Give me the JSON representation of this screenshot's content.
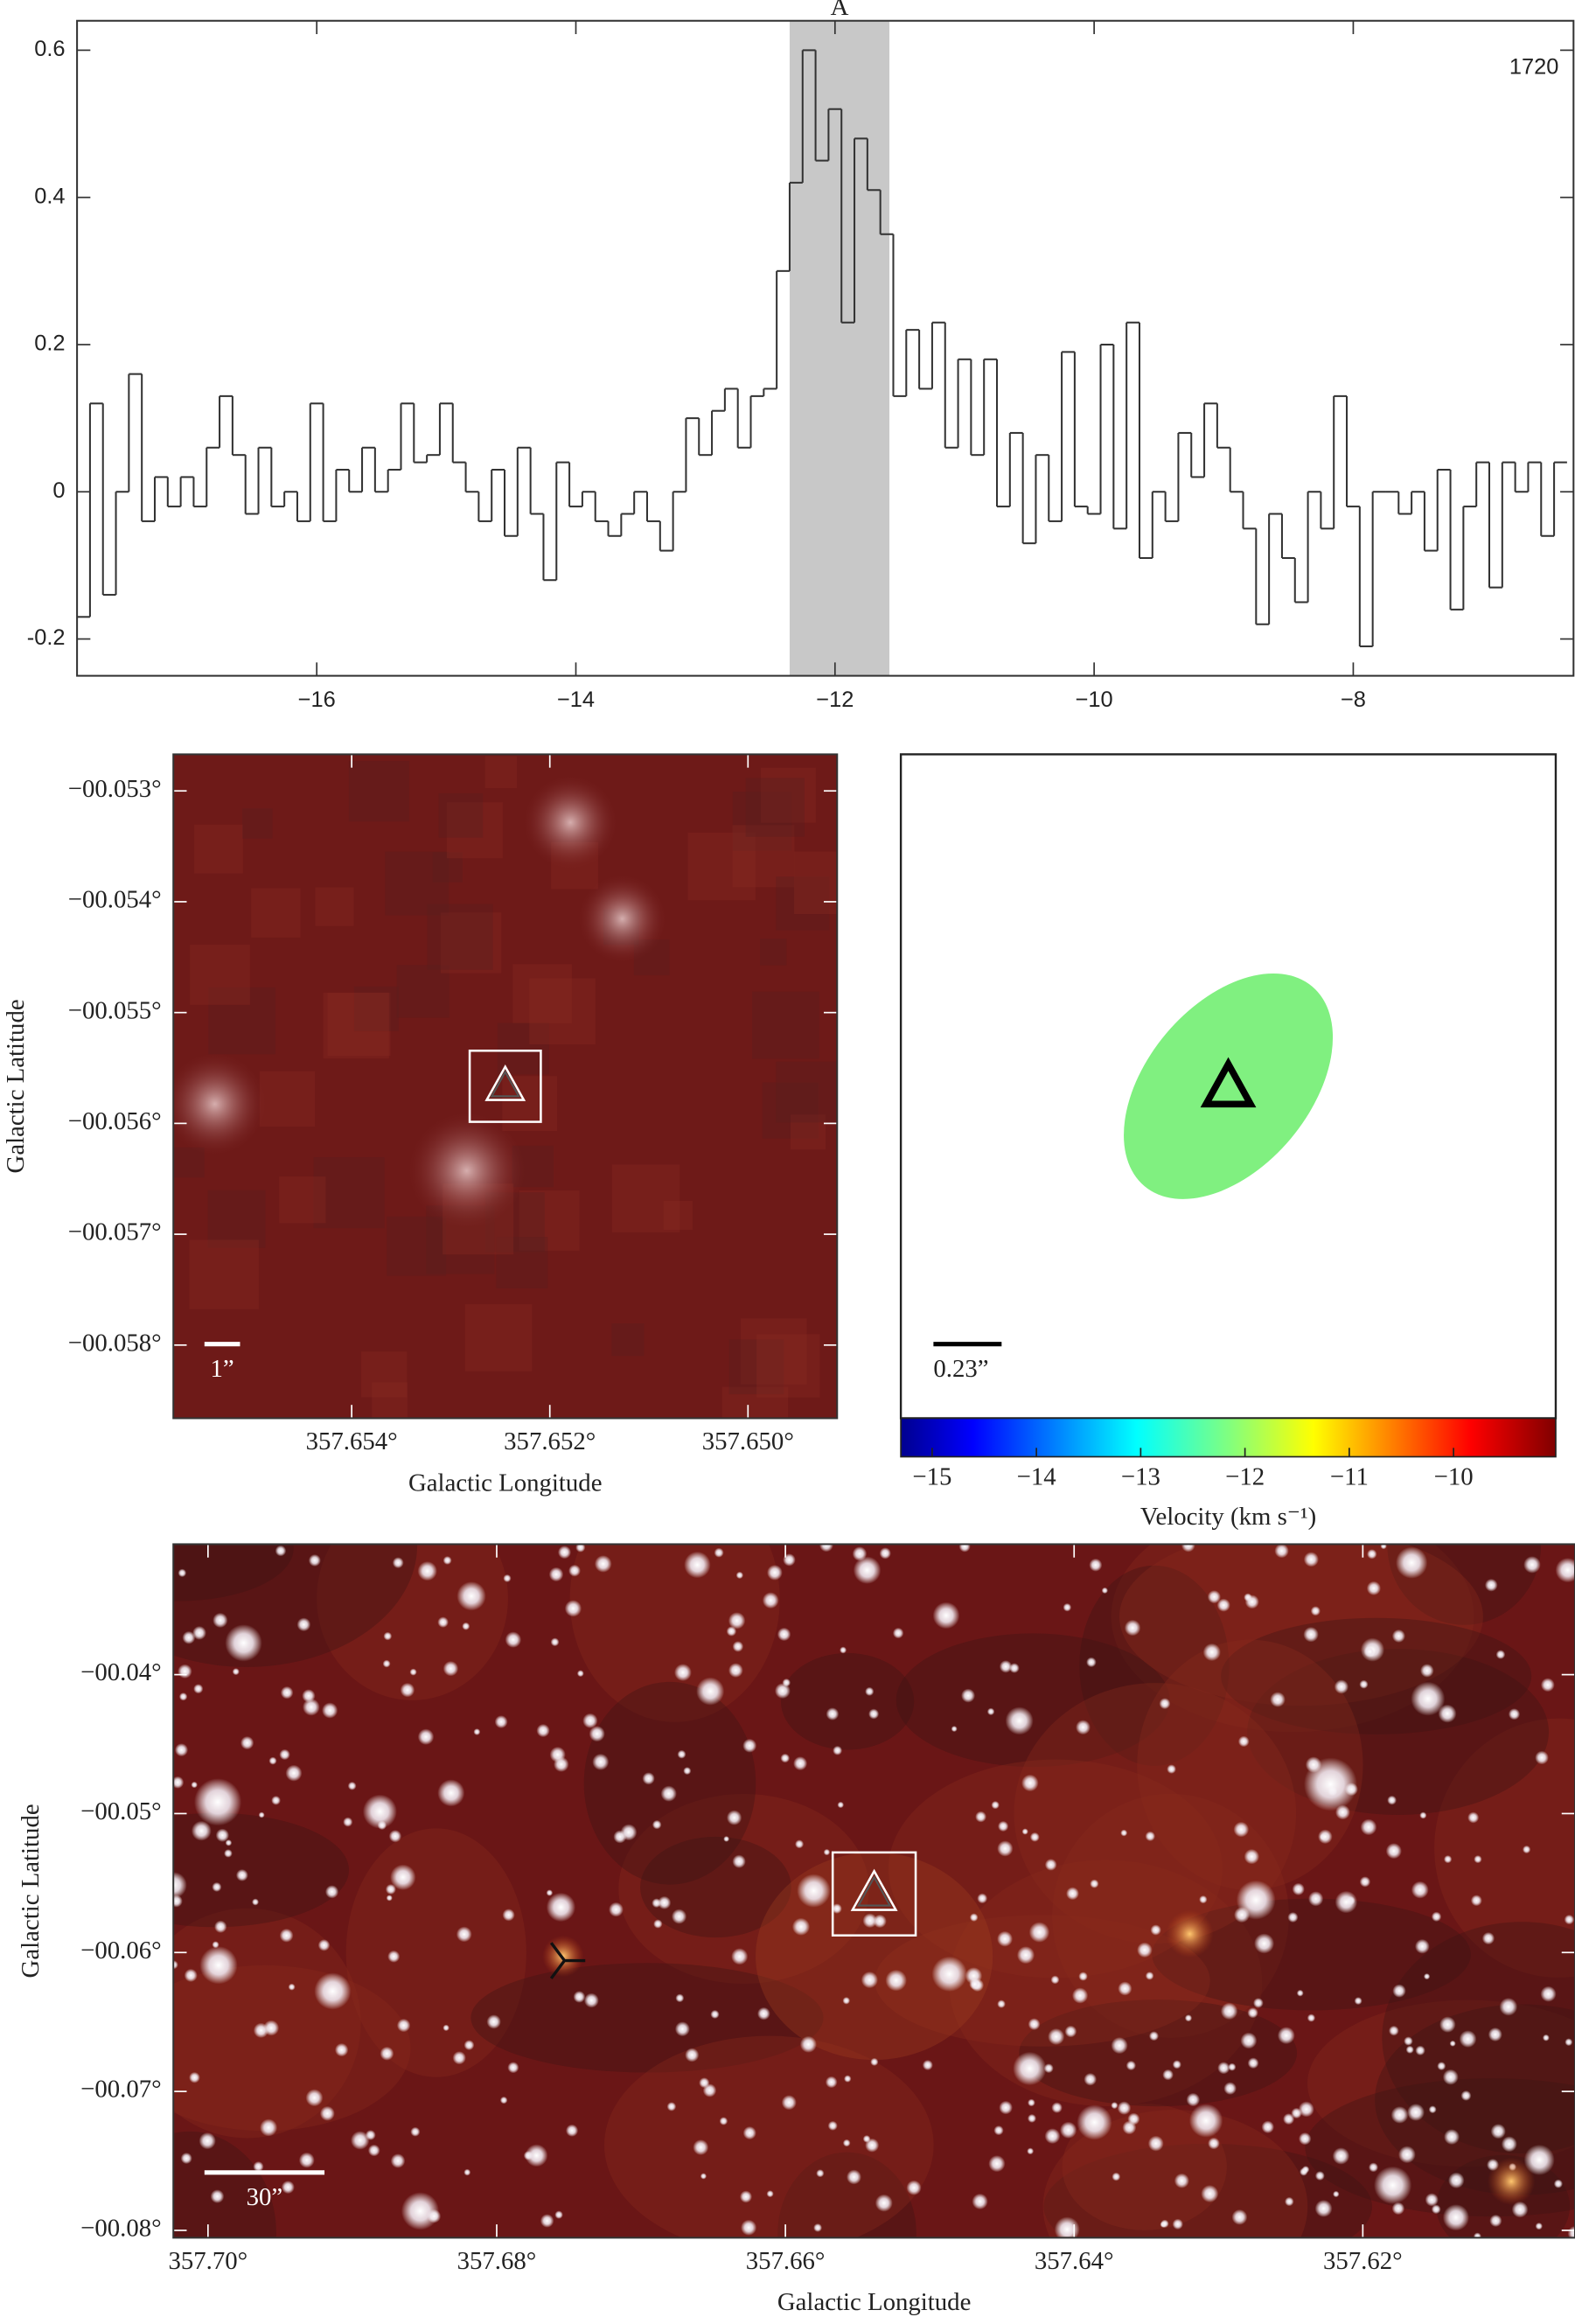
{
  "chart_data": [
    {
      "type": "step",
      "annotation": "A",
      "corner_label": "1720",
      "color": "#333333",
      "shade": [
        -12.35,
        -11.58
      ],
      "shade_color": "#c8c8c8",
      "x": [
        -17.8,
        -17.7,
        -17.6,
        -17.5,
        -17.4,
        -17.3,
        -17.2,
        -17.1,
        -17.0,
        -16.9,
        -16.8,
        -16.7,
        -16.6,
        -16.5,
        -16.4,
        -16.3,
        -16.2,
        -16.1,
        -16.0,
        -15.9,
        -15.8,
        -15.7,
        -15.6,
        -15.5,
        -15.4,
        -15.3,
        -15.2,
        -15.1,
        -15.0,
        -14.9,
        -14.8,
        -14.7,
        -14.6,
        -14.5,
        -14.4,
        -14.3,
        -14.2,
        -14.1,
        -14.0,
        -13.9,
        -13.8,
        -13.7,
        -13.6,
        -13.5,
        -13.4,
        -13.3,
        -13.2,
        -13.1,
        -13.0,
        -12.9,
        -12.8,
        -12.7,
        -12.6,
        -12.5,
        -12.4,
        -12.3,
        -12.2,
        -12.1,
        -12.0,
        -11.9,
        -11.8,
        -11.7,
        -11.6,
        -11.5,
        -11.4,
        -11.3,
        -11.2,
        -11.1,
        -11.0,
        -10.9,
        -10.8,
        -10.7,
        -10.6,
        -10.5,
        -10.4,
        -10.3,
        -10.2,
        -10.1,
        -10.0,
        -9.9,
        -9.8,
        -9.7,
        -9.6,
        -9.5,
        -9.4,
        -9.3,
        -9.2,
        -9.1,
        -9.0,
        -8.9,
        -8.8,
        -8.7,
        -8.6,
        -8.5,
        -8.4,
        -8.3,
        -8.2,
        -8.1,
        -8.0,
        -7.9,
        -7.8,
        -7.7,
        -7.6,
        -7.5,
        -7.4,
        -7.3,
        -7.2,
        -7.1,
        -7.0,
        -6.9,
        -6.8,
        -6.7,
        -6.6,
        -6.5,
        -6.4
      ],
      "values": [
        -0.17,
        0.12,
        -0.14,
        0.0,
        0.16,
        -0.04,
        0.02,
        -0.02,
        0.02,
        -0.02,
        0.06,
        0.13,
        0.05,
        -0.03,
        0.06,
        -0.02,
        0.0,
        -0.04,
        0.12,
        -0.04,
        0.03,
        0.0,
        0.06,
        0.0,
        0.03,
        0.12,
        0.04,
        0.05,
        0.12,
        0.04,
        0.0,
        -0.04,
        0.03,
        -0.06,
        0.06,
        -0.03,
        -0.12,
        0.04,
        -0.02,
        0.0,
        -0.04,
        -0.06,
        -0.03,
        0.0,
        -0.04,
        -0.08,
        0.0,
        0.1,
        0.05,
        0.11,
        0.14,
        0.06,
        0.13,
        0.14,
        0.3,
        0.42,
        0.6,
        0.45,
        0.52,
        0.23,
        0.48,
        0.41,
        0.35,
        0.13,
        0.22,
        0.14,
        0.23,
        0.06,
        0.18,
        0.05,
        0.18,
        -0.02,
        0.08,
        -0.07,
        0.05,
        -0.04,
        0.19,
        -0.02,
        -0.03,
        0.2,
        -0.05,
        0.23,
        -0.09,
        0.0,
        -0.04,
        0.08,
        0.02,
        0.12,
        0.06,
        0.0,
        -0.05,
        -0.18,
        -0.03,
        -0.09,
        -0.15,
        0.0,
        -0.05,
        0.13,
        -0.02,
        -0.21,
        0.0,
        0.0,
        -0.03,
        0.0,
        -0.08,
        0.03,
        -0.16,
        -0.02,
        0.04,
        -0.13,
        0.04,
        0.0,
        0.04,
        -0.06,
        0.04
      ],
      "xlim": [
        -17.85,
        -6.3
      ],
      "ylim": [
        -0.25,
        0.64
      ],
      "xticks": [
        {
          "value": -16,
          "label": "−16"
        },
        {
          "value": -14,
          "label": "−14"
        },
        {
          "value": -12,
          "label": "−12"
        },
        {
          "value": -10,
          "label": "−10"
        },
        {
          "value": -8,
          "label": "−8"
        }
      ],
      "yticks": [
        {
          "value": -0.2,
          "label": "-0.2"
        },
        0,
        0.2,
        0.4,
        0.6
      ]
    },
    {
      "type": "image",
      "xlabel": "Galactic Longitude",
      "ylabel": "Galactic Latitude",
      "scale_bar": "1”",
      "xlim": [
        357.6558,
        357.6491
      ],
      "ylim": [
        -0.05866,
        -0.05267
      ],
      "xticks": [
        {
          "value": 357.654,
          "label": "357.654°"
        },
        {
          "value": 357.652,
          "label": "357.652°"
        },
        {
          "value": 357.65,
          "label": "357.650°"
        }
      ],
      "yticks": [
        {
          "value": -0.053,
          "label": "−00.053°"
        },
        {
          "value": -0.054,
          "label": "−00.054°"
        },
        {
          "value": -0.055,
          "label": "−00.055°"
        },
        {
          "value": -0.056,
          "label": "−00.056°"
        },
        {
          "value": -0.057,
          "label": "−00.057°"
        },
        {
          "value": -0.058,
          "label": "−00.058°"
        }
      ]
    },
    {
      "type": "colorbar",
      "scale_bar": "0.23”",
      "xlabel": "Velocity (km s⁻¹)",
      "spot_color": "#80f080",
      "xlim": [
        -15.3,
        -9.02
      ],
      "xticks": [
        {
          "value": -15,
          "label": "−15"
        },
        {
          "value": -14,
          "label": "−14"
        },
        {
          "value": -13,
          "label": "−13"
        },
        {
          "value": -12,
          "label": "−12"
        },
        {
          "value": -11,
          "label": "−11"
        },
        {
          "value": -10,
          "label": "−10"
        }
      ]
    },
    {
      "type": "image",
      "xlabel": "Galactic Longitude",
      "ylabel": "Galactic Latitude",
      "scale_bar": "30”",
      "xlim": [
        357.7024,
        357.6053
      ],
      "ylim": [
        -0.08053,
        -0.03061
      ],
      "xticks": [
        {
          "value": 357.7,
          "label": "357.70°"
        },
        {
          "value": 357.68,
          "label": "357.68°"
        },
        {
          "value": 357.66,
          "label": "357.66°"
        },
        {
          "value": 357.64,
          "label": "357.64°"
        },
        {
          "value": 357.62,
          "label": "357.62°"
        }
      ],
      "yticks": [
        {
          "value": -0.04,
          "label": "−00.04°"
        },
        {
          "value": -0.05,
          "label": "−00.05°"
        },
        {
          "value": -0.06,
          "label": "−00.06°"
        },
        {
          "value": -0.07,
          "label": "−00.07°"
        },
        {
          "value": -0.08,
          "label": "−00.08°"
        }
      ]
    }
  ]
}
